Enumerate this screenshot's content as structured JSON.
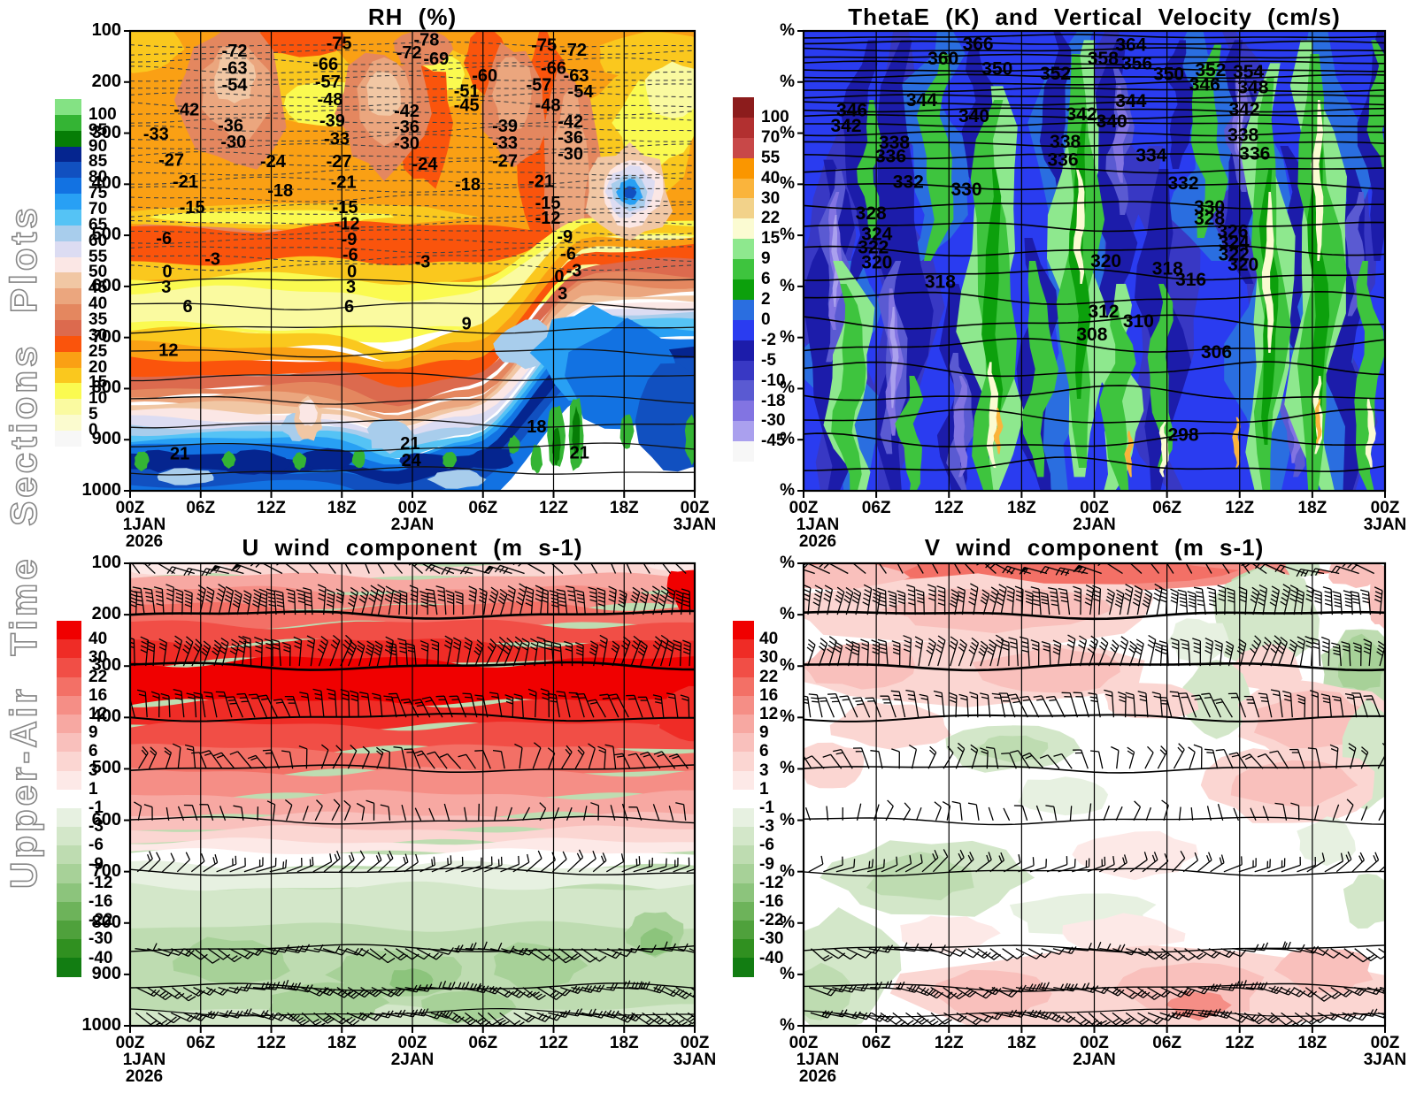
{
  "page": {
    "vertical_title": "Upper-Air Time Sections Plots"
  },
  "time_axis": {
    "ticks": [
      "00Z",
      "06Z",
      "12Z",
      "18Z",
      "00Z",
      "06Z",
      "12Z",
      "18Z",
      "00Z"
    ],
    "date_labels": [
      {
        "tick": 0,
        "text": "1JAN"
      },
      {
        "tick": 4,
        "text": "2JAN"
      },
      {
        "tick": 8,
        "text": "3JAN"
      }
    ],
    "year_label": {
      "tick": 0,
      "text": "2026"
    }
  },
  "pressure_ticks": [
    "100",
    "200",
    "300",
    "400",
    "500",
    "600",
    "700",
    "800",
    "900",
    "1000"
  ],
  "percent_symbol": "%",
  "chart_data": [
    {
      "id": "rh",
      "type": "heatmap",
      "title": "RH (%)",
      "x_ticks": [
        "00Z",
        "06Z",
        "12Z",
        "18Z",
        "00Z",
        "06Z",
        "12Z",
        "18Z",
        "00Z"
      ],
      "x_range": "00Z 1JAN 2026 to 00Z 3JAN",
      "y_pressure_hPa": [
        100,
        200,
        300,
        400,
        500,
        600,
        700,
        800,
        900,
        1000
      ],
      "shaded_field": "relative humidity (%)",
      "overlay_field": "temperature contours (degC), dashed negative / solid positive",
      "colorbar": {
        "labels": [
          "100",
          "95",
          "90",
          "85",
          "80",
          "75",
          "70",
          "65",
          "60",
          "55",
          "50",
          "45",
          "40",
          "35",
          "30",
          "25",
          "20",
          "15",
          "10",
          "5",
          "0"
        ],
        "colors": [
          "#84e284",
          "#34b434",
          "#067d06",
          "#05258f",
          "#1150c0",
          "#1272e2",
          "#28a0f4",
          "#55c3f5",
          "#a8cdec",
          "#dcdcf2",
          "#fbe7e5",
          "#f1c7a4",
          "#eba67e",
          "#e4875f",
          "#dc6a4e",
          "#fa540c",
          "#faa014",
          "#fac81e",
          "#fafa50",
          "#fafaa0",
          "#fbfbcf",
          "#f7f7f7"
        ]
      },
      "contour_labels": [
        [
          "-72",
          0.185,
          0.042
        ],
        [
          "-63",
          0.185,
          0.08
        ],
        [
          "-54",
          0.185,
          0.116
        ],
        [
          "-42",
          0.1,
          0.17
        ],
        [
          "-36",
          0.178,
          0.205
        ],
        [
          "-33",
          0.046,
          0.223
        ],
        [
          "-30",
          0.183,
          0.24
        ],
        [
          "-27",
          0.073,
          0.28
        ],
        [
          "-24",
          0.253,
          0.283
        ],
        [
          "-21",
          0.098,
          0.327
        ],
        [
          "-18",
          0.266,
          0.346
        ],
        [
          "-15",
          0.11,
          0.383
        ],
        [
          "-75",
          0.37,
          0.026
        ],
        [
          "-66",
          0.346,
          0.071
        ],
        [
          "-57",
          0.35,
          0.11
        ],
        [
          "-48",
          0.354,
          0.148
        ],
        [
          "-39",
          0.358,
          0.194
        ],
        [
          "-33",
          0.366,
          0.234
        ],
        [
          "-27",
          0.37,
          0.283
        ],
        [
          "-21",
          0.378,
          0.328
        ],
        [
          "-15",
          0.381,
          0.383
        ],
        [
          "-12",
          0.384,
          0.418
        ],
        [
          "-9",
          0.388,
          0.452
        ],
        [
          "-6",
          0.39,
          0.486
        ],
        [
          "-78",
          0.525,
          0.018
        ],
        [
          "-72",
          0.494,
          0.046
        ],
        [
          "-69",
          0.542,
          0.06
        ],
        [
          "-60",
          0.628,
          0.096
        ],
        [
          "-51",
          0.596,
          0.13
        ],
        [
          "-45",
          0.596,
          0.161
        ],
        [
          "-42",
          0.49,
          0.173
        ],
        [
          "-36",
          0.49,
          0.208
        ],
        [
          "-30",
          0.49,
          0.243
        ],
        [
          "-24",
          0.522,
          0.288
        ],
        [
          "-18",
          0.598,
          0.333
        ],
        [
          "-75",
          0.733,
          0.03
        ],
        [
          "-72",
          0.786,
          0.04
        ],
        [
          "-66",
          0.75,
          0.08
        ],
        [
          "-63",
          0.79,
          0.096
        ],
        [
          "-57",
          0.724,
          0.116
        ],
        [
          "-54",
          0.798,
          0.131
        ],
        [
          "-48",
          0.74,
          0.161
        ],
        [
          "-42",
          0.78,
          0.196
        ],
        [
          "-39",
          0.664,
          0.206
        ],
        [
          "-36",
          0.78,
          0.231
        ],
        [
          "-33",
          0.664,
          0.242
        ],
        [
          "-30",
          0.78,
          0.266
        ],
        [
          "-27",
          0.664,
          0.282
        ],
        [
          "-21",
          0.728,
          0.326
        ],
        [
          "-15",
          0.74,
          0.373
        ],
        [
          "-12",
          0.74,
          0.406
        ],
        [
          "-9",
          0.77,
          0.446
        ],
        [
          "-6",
          0.776,
          0.484
        ],
        [
          "-3",
          0.786,
          0.52
        ],
        [
          "-6",
          0.06,
          0.45
        ],
        [
          "-3",
          0.146,
          0.495
        ],
        [
          "-3",
          0.518,
          0.501
        ],
        [
          "0",
          0.066,
          0.522
        ],
        [
          "3",
          0.064,
          0.556
        ],
        [
          "6",
          0.102,
          0.598
        ],
        [
          "0",
          0.393,
          0.522
        ],
        [
          "3",
          0.391,
          0.556
        ],
        [
          "6",
          0.388,
          0.598
        ],
        [
          "9",
          0.596,
          0.636
        ],
        [
          "12",
          0.068,
          0.693
        ],
        [
          "0",
          0.76,
          0.533
        ],
        [
          "3",
          0.766,
          0.57
        ],
        [
          "18",
          0.72,
          0.86
        ],
        [
          "21",
          0.088,
          0.918
        ],
        [
          "21",
          0.496,
          0.896
        ],
        [
          "24",
          0.498,
          0.933
        ],
        [
          "21",
          0.796,
          0.916
        ]
      ]
    },
    {
      "id": "thetae",
      "type": "heatmap",
      "title": "ThetaE (K) and Vertical Velocity (cm/s)",
      "x_ticks": [
        "00Z",
        "06Z",
        "12Z",
        "18Z",
        "00Z",
        "06Z",
        "12Z",
        "18Z",
        "00Z"
      ],
      "shaded_field": "vertical velocity (cm/s)",
      "overlay_field": "equivalent potential temperature contours (K)",
      "colorbar": {
        "labels": [
          "100",
          "70",
          "55",
          "40",
          "30",
          "22",
          "15",
          "9",
          "6",
          "2",
          "0",
          "-2",
          "-5",
          "-10",
          "-18",
          "-30",
          "-45"
        ],
        "colors": [
          "#8c1c1c",
          "#b23030",
          "#c84848",
          "#fa9600",
          "#fab43c",
          "#f2d28a",
          "#fbfbd2",
          "#8ee88e",
          "#3ec43e",
          "#0ca00c",
          "#2a6ee0",
          "#2a3cf0",
          "#1c1caa",
          "#3838c4",
          "#5a5ad2",
          "#8274e2",
          "#aaa0ee",
          "#f7f7f7"
        ]
      },
      "contour_labels": [
        [
          "366",
          0.3,
          0.028
        ],
        [
          "364",
          0.563,
          0.03
        ],
        [
          "360",
          0.24,
          0.06
        ],
        [
          "358",
          0.515,
          0.06
        ],
        [
          "356",
          0.573,
          0.07
        ],
        [
          "352",
          0.433,
          0.092
        ],
        [
          "354",
          0.765,
          0.088
        ],
        [
          "350",
          0.333,
          0.082
        ],
        [
          "350",
          0.628,
          0.093
        ],
        [
          "352",
          0.7,
          0.085
        ],
        [
          "348",
          0.773,
          0.122
        ],
        [
          "346",
          0.083,
          0.172
        ],
        [
          "346",
          0.69,
          0.116
        ],
        [
          "344",
          0.203,
          0.15
        ],
        [
          "344",
          0.563,
          0.152
        ],
        [
          "342",
          0.073,
          0.206
        ],
        [
          "342",
          0.478,
          0.181
        ],
        [
          "342",
          0.758,
          0.17
        ],
        [
          "340",
          0.293,
          0.185
        ],
        [
          "340",
          0.53,
          0.196
        ],
        [
          "338",
          0.156,
          0.242
        ],
        [
          "338",
          0.45,
          0.24
        ],
        [
          "338",
          0.756,
          0.226
        ],
        [
          "336",
          0.15,
          0.272
        ],
        [
          "336",
          0.446,
          0.28
        ],
        [
          "336",
          0.776,
          0.266
        ],
        [
          "334",
          0.598,
          0.27
        ],
        [
          "332",
          0.18,
          0.328
        ],
        [
          "332",
          0.653,
          0.331
        ],
        [
          "330",
          0.28,
          0.344
        ],
        [
          "330",
          0.698,
          0.383
        ],
        [
          "328",
          0.116,
          0.396
        ],
        [
          "328",
          0.698,
          0.408
        ],
        [
          "326",
          0.738,
          0.436
        ],
        [
          "324",
          0.126,
          0.441
        ],
        [
          "324",
          0.74,
          0.46
        ],
        [
          "322",
          0.12,
          0.47
        ],
        [
          "322",
          0.74,
          0.486
        ],
        [
          "320",
          0.126,
          0.503
        ],
        [
          "320",
          0.52,
          0.5
        ],
        [
          "320",
          0.756,
          0.508
        ],
        [
          "318",
          0.235,
          0.545
        ],
        [
          "318",
          0.626,
          0.516
        ],
        [
          "316",
          0.666,
          0.54
        ],
        [
          "312",
          0.516,
          0.61
        ],
        [
          "310",
          0.576,
          0.631
        ],
        [
          "308",
          0.496,
          0.66
        ],
        [
          "306",
          0.71,
          0.698
        ],
        [
          "298",
          0.653,
          0.878
        ]
      ]
    },
    {
      "id": "u",
      "type": "heatmap",
      "title": "U wind component (m s-1)",
      "x_ticks": [
        "00Z",
        "06Z",
        "12Z",
        "18Z",
        "00Z",
        "06Z",
        "12Z",
        "18Z",
        "00Z"
      ],
      "y_pressure_hPa": [
        100,
        200,
        300,
        400,
        500,
        600,
        700,
        800,
        900,
        1000
      ],
      "shaded_field": "zonal wind (m/s)",
      "overlay_field": "wind barbs",
      "barb_levels_hPa": [
        100,
        200,
        300,
        400,
        500,
        600,
        700,
        850,
        925,
        975
      ],
      "colorbar": {
        "labels": [
          "40",
          "30",
          "22",
          "16",
          "12",
          "9",
          "6",
          "3",
          "1",
          "-1",
          "-3",
          "-6",
          "-9",
          "-12",
          "-16",
          "-22",
          "-30",
          "-40"
        ],
        "colors": [
          "#f00000",
          "#ef2c26",
          "#f14e46",
          "#f37066",
          "#f58e86",
          "#f7a8a2",
          "#f9c0bc",
          "#fbd6d2",
          "#fde9e7",
          "#ffffff",
          "#e7f1e1",
          "#d3e7c9",
          "#bedcb1",
          "#a7d198",
          "#8cc47c",
          "#6db35a",
          "#4fa13c",
          "#309020",
          "#127d12"
        ]
      },
      "contour_labels": []
    },
    {
      "id": "v",
      "type": "heatmap",
      "title": "V wind component (m s-1)",
      "x_ticks": [
        "00Z",
        "06Z",
        "12Z",
        "18Z",
        "00Z",
        "06Z",
        "12Z",
        "18Z",
        "00Z"
      ],
      "shaded_field": "meridional wind (m/s)",
      "overlay_field": "wind barbs",
      "barb_levels_hPa": [
        100,
        200,
        300,
        400,
        500,
        600,
        700,
        850,
        925,
        975
      ],
      "colorbar": {
        "labels": [
          "40",
          "30",
          "22",
          "16",
          "12",
          "9",
          "6",
          "3",
          "1",
          "-1",
          "-3",
          "-6",
          "-9",
          "-12",
          "-16",
          "-22",
          "-30",
          "-40"
        ],
        "colors": [
          "#f00000",
          "#ef2c26",
          "#f14e46",
          "#f37066",
          "#f58e86",
          "#f7a8a2",
          "#f9c0bc",
          "#fbd6d2",
          "#fde9e7",
          "#ffffff",
          "#e7f1e1",
          "#d3e7c9",
          "#bedcb1",
          "#a7d198",
          "#8cc47c",
          "#6db35a",
          "#4fa13c",
          "#309020",
          "#127d12"
        ]
      },
      "contour_labels": []
    }
  ]
}
